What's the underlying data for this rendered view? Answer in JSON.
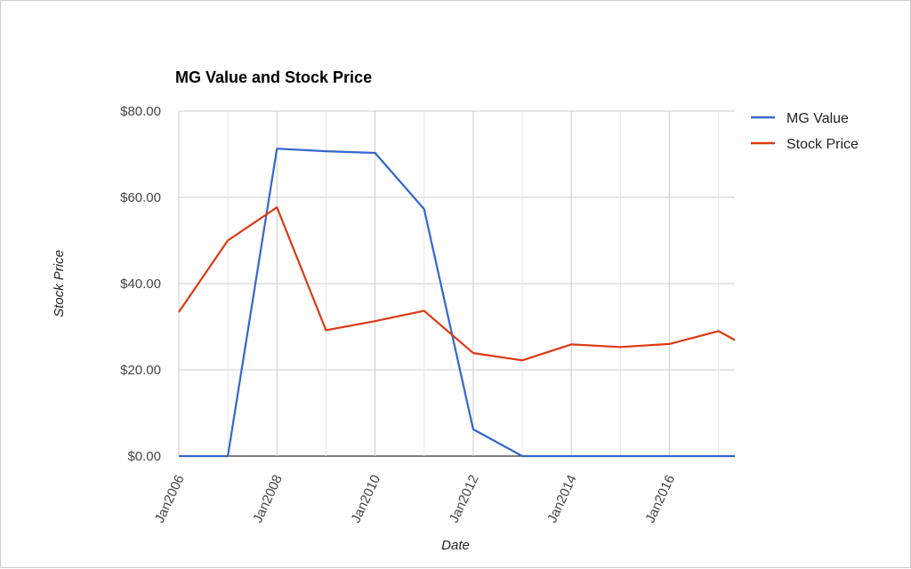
{
  "chart_data": {
    "type": "line",
    "title": "MG Value and Stock Price",
    "xlabel": "Date",
    "ylabel": "Stock Price",
    "x_tick_labels": [
      "Jan2006",
      "Jan2008",
      "Jan2010",
      "Jan2012",
      "Jan2014",
      "Jan2016"
    ],
    "y_tick_labels": [
      "$0.00",
      "$20.00",
      "$40.00",
      "$60.00",
      "$80.00"
    ],
    "y_ticks": [
      0,
      20,
      40,
      60,
      80
    ],
    "ylim": [
      0,
      80
    ],
    "xlim": [
      "2006-01",
      "2017-05"
    ],
    "grid": true,
    "legend_position": "right",
    "x": [
      "2006-01",
      "2007-01",
      "2008-01",
      "2009-01",
      "2010-01",
      "2011-01",
      "2012-01",
      "2013-01",
      "2014-01",
      "2015-01",
      "2016-01",
      "2017-01",
      "2017-05"
    ],
    "series": [
      {
        "name": "MG Value",
        "color": "#3366cc",
        "values": [
          0,
          0,
          71.3,
          70.7,
          70.3,
          57.3,
          6.2,
          0,
          0,
          0,
          0,
          0,
          0
        ]
      },
      {
        "name": "Stock Price",
        "color": "#dc3912",
        "values": [
          33.4,
          50.0,
          57.7,
          29.2,
          31.3,
          33.7,
          23.9,
          22.2,
          25.9,
          25.3,
          26.0,
          29.0,
          26.9
        ]
      }
    ]
  }
}
